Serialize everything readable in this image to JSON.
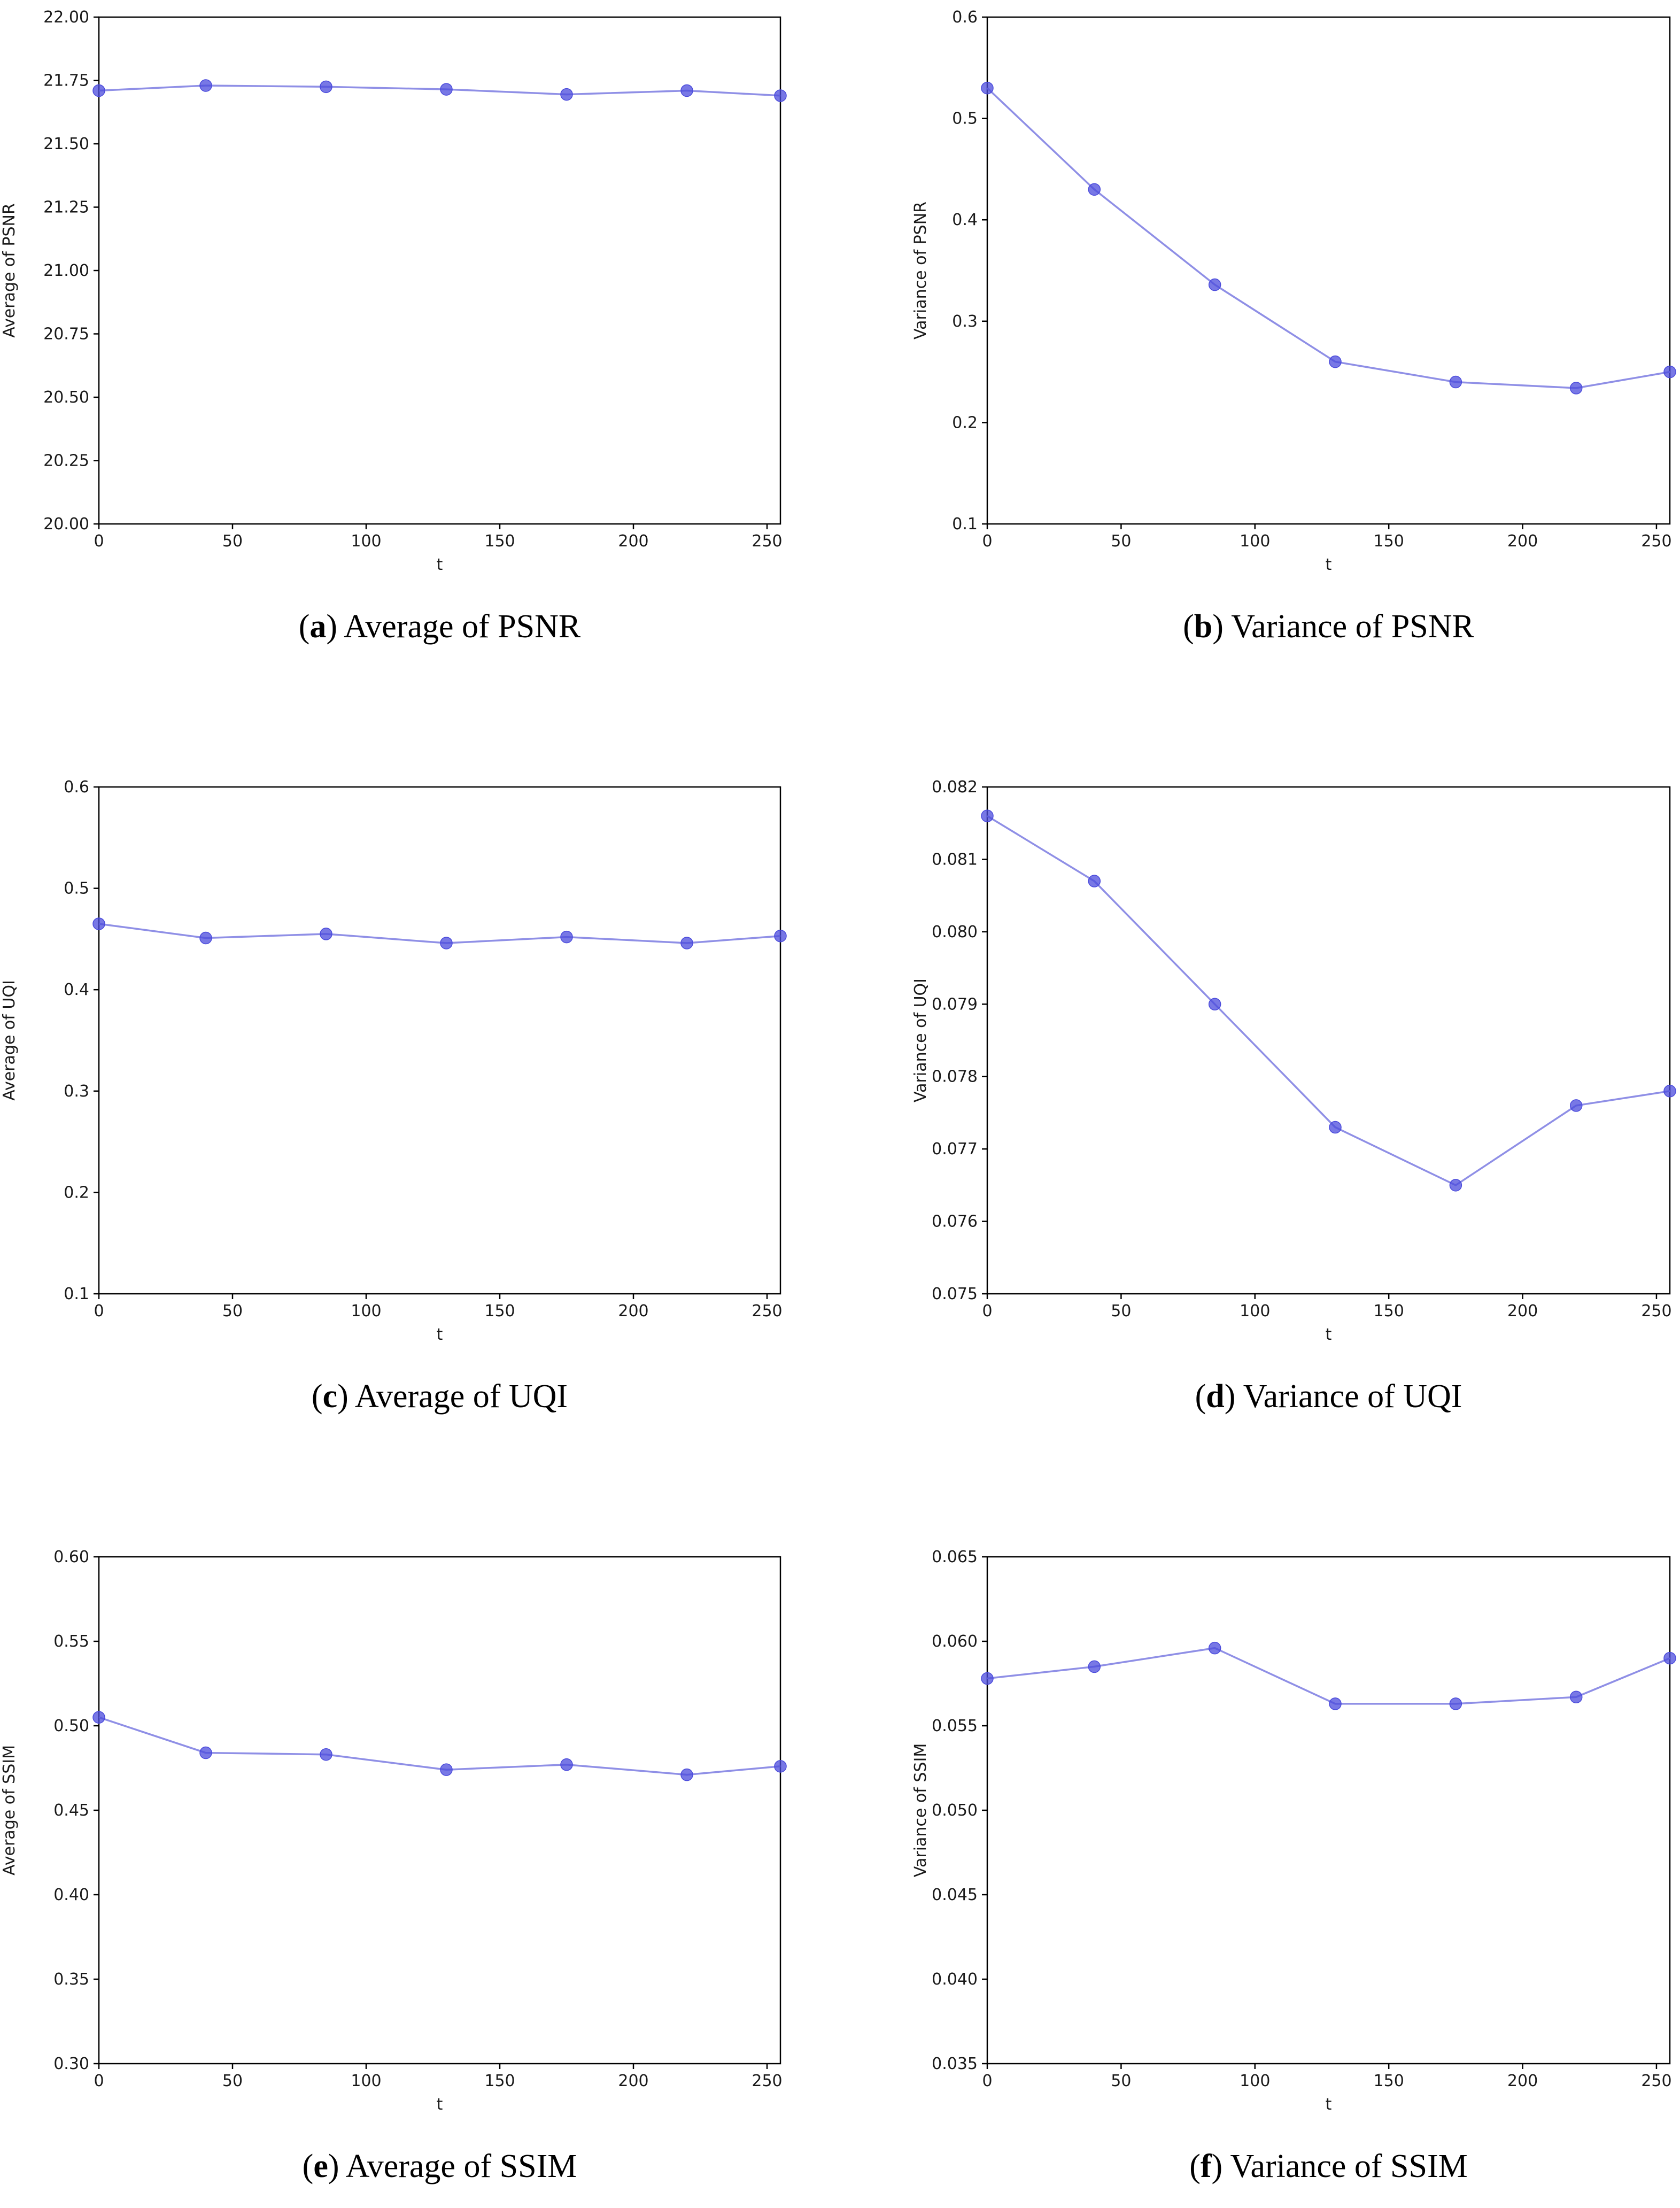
{
  "style": {
    "line_color": "#8f8fe6",
    "marker_color": "#4b4bdc",
    "axis_color": "#000000"
  },
  "chart_data": [
    {
      "id": "a",
      "type": "line",
      "caption_letter": "a",
      "caption_text": "Average of PSNR",
      "xlabel": "t",
      "ylabel": "Average of PSNR",
      "xlim": [
        0,
        255
      ],
      "ylim": [
        20.0,
        22.0
      ],
      "xticks": [
        0,
        50,
        100,
        150,
        200,
        250
      ],
      "xtick_labels": [
        "0",
        "50",
        "100",
        "150",
        "200",
        "250"
      ],
      "yticks": [
        20.0,
        20.25,
        20.5,
        20.75,
        21.0,
        21.25,
        21.5,
        21.75,
        22.0
      ],
      "ytick_labels": [
        "20.00",
        "20.25",
        "20.50",
        "20.75",
        "21.00",
        "21.25",
        "21.50",
        "21.75",
        "22.00"
      ],
      "x": [
        0,
        40,
        85,
        130,
        175,
        220,
        255
      ],
      "y": [
        21.71,
        21.73,
        21.725,
        21.715,
        21.695,
        21.71,
        21.69
      ]
    },
    {
      "id": "b",
      "type": "line",
      "caption_letter": "b",
      "caption_text": "Variance of PSNR",
      "xlabel": "t",
      "ylabel": "Variance of PSNR",
      "xlim": [
        0,
        255
      ],
      "ylim": [
        0.1,
        0.6
      ],
      "xticks": [
        0,
        50,
        100,
        150,
        200,
        250
      ],
      "xtick_labels": [
        "0",
        "50",
        "100",
        "150",
        "200",
        "250"
      ],
      "yticks": [
        0.1,
        0.2,
        0.3,
        0.4,
        0.5,
        0.6
      ],
      "ytick_labels": [
        "0.1",
        "0.2",
        "0.3",
        "0.4",
        "0.5",
        "0.6"
      ],
      "x": [
        0,
        40,
        85,
        130,
        175,
        220,
        255
      ],
      "y": [
        0.53,
        0.43,
        0.336,
        0.26,
        0.24,
        0.234,
        0.25
      ]
    },
    {
      "id": "c",
      "type": "line",
      "caption_letter": "c",
      "caption_text": "Average of UQI",
      "xlabel": "t",
      "ylabel": "Average of UQI",
      "xlim": [
        0,
        255
      ],
      "ylim": [
        0.1,
        0.6
      ],
      "xticks": [
        0,
        50,
        100,
        150,
        200,
        250
      ],
      "xtick_labels": [
        "0",
        "50",
        "100",
        "150",
        "200",
        "250"
      ],
      "yticks": [
        0.1,
        0.2,
        0.3,
        0.4,
        0.5,
        0.6
      ],
      "ytick_labels": [
        "0.1",
        "0.2",
        "0.3",
        "0.4",
        "0.5",
        "0.6"
      ],
      "x": [
        0,
        40,
        85,
        130,
        175,
        220,
        255
      ],
      "y": [
        0.465,
        0.451,
        0.455,
        0.446,
        0.452,
        0.446,
        0.453
      ]
    },
    {
      "id": "d",
      "type": "line",
      "caption_letter": "d",
      "caption_text": "Variance of UQI",
      "xlabel": "t",
      "ylabel": "Variance of UQI",
      "xlim": [
        0,
        255
      ],
      "ylim": [
        0.075,
        0.082
      ],
      "xticks": [
        0,
        50,
        100,
        150,
        200,
        250
      ],
      "xtick_labels": [
        "0",
        "50",
        "100",
        "150",
        "200",
        "250"
      ],
      "yticks": [
        0.075,
        0.076,
        0.077,
        0.078,
        0.079,
        0.08,
        0.081,
        0.082
      ],
      "ytick_labels": [
        "0.075",
        "0.076",
        "0.077",
        "0.078",
        "0.079",
        "0.080",
        "0.081",
        "0.082"
      ],
      "x": [
        0,
        40,
        85,
        130,
        175,
        220,
        255
      ],
      "y": [
        0.0816,
        0.0807,
        0.079,
        0.0773,
        0.0765,
        0.0776,
        0.0778
      ]
    },
    {
      "id": "e",
      "type": "line",
      "caption_letter": "e",
      "caption_text": "Average of SSIM",
      "xlabel": "t",
      "ylabel": "Average of SSIM",
      "xlim": [
        0,
        255
      ],
      "ylim": [
        0.3,
        0.6
      ],
      "xticks": [
        0,
        50,
        100,
        150,
        200,
        250
      ],
      "xtick_labels": [
        "0",
        "50",
        "100",
        "150",
        "200",
        "250"
      ],
      "yticks": [
        0.3,
        0.35,
        0.4,
        0.45,
        0.5,
        0.55,
        0.6
      ],
      "ytick_labels": [
        "0.30",
        "0.35",
        "0.40",
        "0.45",
        "0.50",
        "0.55",
        "0.60"
      ],
      "x": [
        0,
        40,
        85,
        130,
        175,
        220,
        255
      ],
      "y": [
        0.505,
        0.484,
        0.483,
        0.474,
        0.477,
        0.471,
        0.476
      ]
    },
    {
      "id": "f",
      "type": "line",
      "caption_letter": "f",
      "caption_text": "Variance of SSIM",
      "xlabel": "t",
      "ylabel": "Variance of SSIM",
      "xlim": [
        0,
        255
      ],
      "ylim": [
        0.035,
        0.065
      ],
      "xticks": [
        0,
        50,
        100,
        150,
        200,
        250
      ],
      "xtick_labels": [
        "0",
        "50",
        "100",
        "150",
        "200",
        "250"
      ],
      "yticks": [
        0.035,
        0.04,
        0.045,
        0.05,
        0.055,
        0.06,
        0.065
      ],
      "ytick_labels": [
        "0.035",
        "0.040",
        "0.045",
        "0.050",
        "0.055",
        "0.060",
        "0.065"
      ],
      "x": [
        0,
        40,
        85,
        130,
        175,
        220,
        255
      ],
      "y": [
        0.0578,
        0.0585,
        0.0596,
        0.0563,
        0.0563,
        0.0567,
        0.059
      ]
    }
  ]
}
